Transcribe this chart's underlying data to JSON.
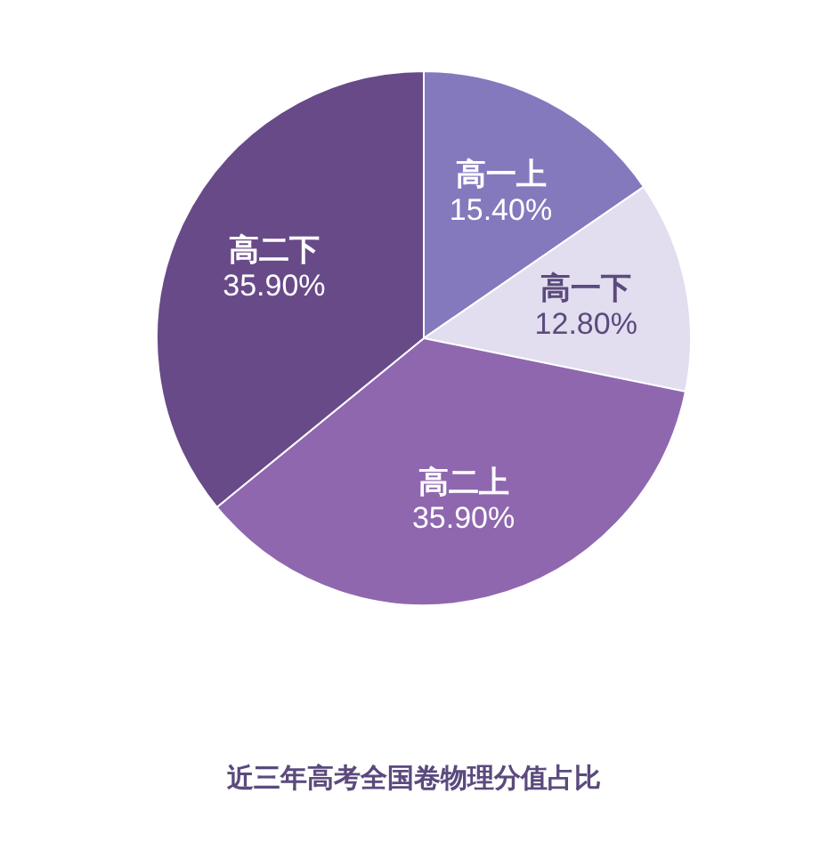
{
  "chart_data": {
    "type": "pie",
    "title": "近三年高考全国卷物理分值占比",
    "categories": [
      "高一上",
      "高一下",
      "高二上",
      "高二下"
    ],
    "values": [
      15.4,
      12.8,
      35.9,
      35.9
    ],
    "value_labels": [
      "15.40%",
      "12.80%",
      "35.90%",
      "35.90%"
    ],
    "colors": [
      "#8579bd",
      "#e2ddef",
      "#8f67af",
      "#684a88"
    ]
  }
}
